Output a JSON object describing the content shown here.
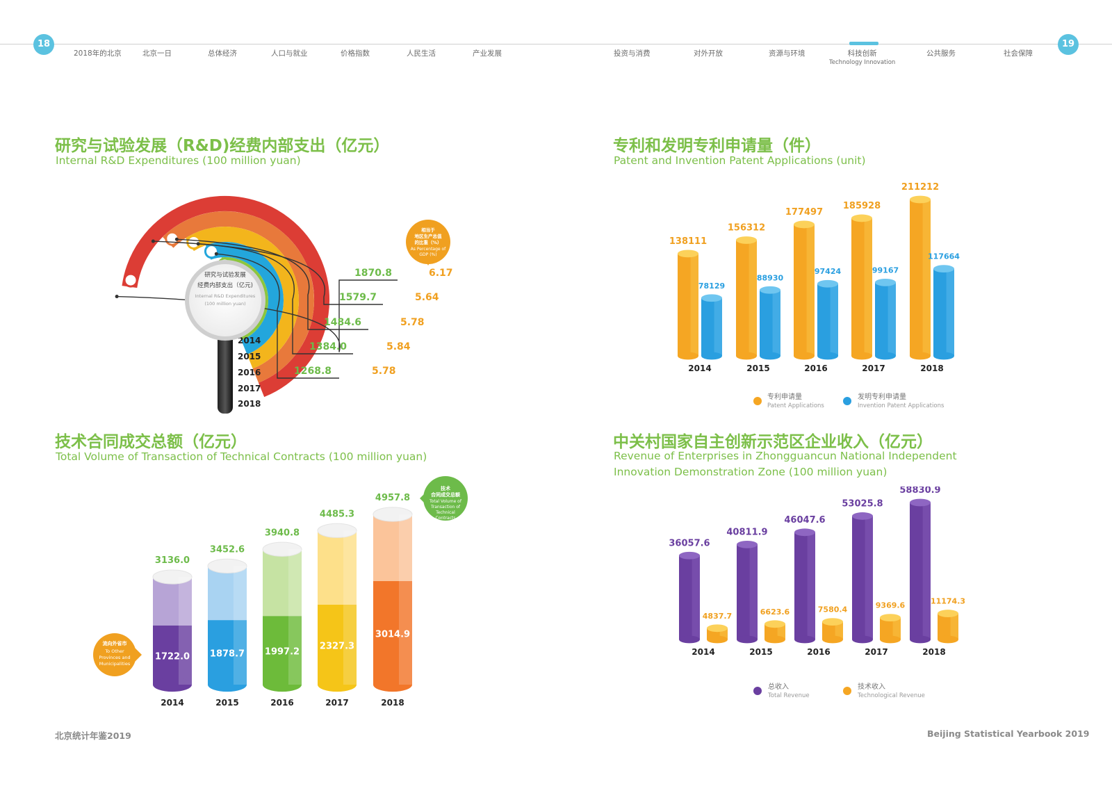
{
  "header": {
    "page_left": "18",
    "page_right": "19",
    "nav_left": [
      "2018年的北京",
      "北京一日",
      "总体经济",
      "人口与就业",
      "价格指数",
      "人民生活",
      "产业发展"
    ],
    "nav_right": [
      "投资与消费",
      "对外开放",
      "资源与环境",
      "科技创新",
      "公共服务",
      "社会保障"
    ],
    "nav_active_sub": "Technology Innovation"
  },
  "footer": {
    "left": "北京统计年鉴2019",
    "right": "Beijing Statistical Yearbook 2019"
  },
  "colors": {
    "title_green": "#7cbf49",
    "accent_blue": "#5bc2e0",
    "orange": "#f5a623",
    "blue": "#2a9fe0",
    "purple": "#6a3fa0",
    "label_green": "#6dbb4a",
    "label_orange": "#f0a020"
  },
  "rd": {
    "title_cn": "研究与试验发展（R&D)经费内部支出（亿元）",
    "title_en": "Internal R&D Expenditures (100 million yuan)",
    "magnifier_cn_1": "研究与试验发展",
    "magnifier_cn_2": "经费内部支出（亿元)",
    "magnifier_en_1": "Internal R&D Expenditures",
    "magnifier_en_2": "(100 million yuan)",
    "badge_lines": [
      "相当于",
      "地区生产总值",
      "的比重（%）",
      "As Percentage of",
      "GDP (%)"
    ]
  },
  "patent": {
    "title_cn": "专利和发明专利申请量（件）",
    "title_en": "Patent and Invention Patent Applications (unit)",
    "legend": [
      {
        "cn": "专利申请量",
        "en": "Patent Applications"
      },
      {
        "cn": "发明专利申请量",
        "en": "Invention Patent Applications"
      }
    ]
  },
  "contract": {
    "title_cn": "技术合同成交总额（亿元）",
    "title_en": "Total Volume of Transaction of Technical Contracts (100 million yuan)",
    "badge_total_lines": [
      "技术",
      "合同成交总额",
      "Total Volume of",
      "Transaction of",
      "Technical",
      "Contracts"
    ],
    "badge_other_lines": [
      "流向外省市",
      "To Other",
      "Provinces and",
      "Municipalities"
    ]
  },
  "zgc": {
    "title_cn": "中关村国家自主创新示范区企业收入（亿元）",
    "title_en_1": "Revenue of Enterprises in Zhongguancun National Independent",
    "title_en_2": "Innovation Demonstration Zone (100 million yuan)",
    "legend": [
      {
        "cn": "总收入",
        "en": "Total Revenue"
      },
      {
        "cn": "技术收入",
        "en": "Technological Revenue"
      }
    ]
  },
  "chart_data": [
    {
      "type": "bar",
      "id": "rd",
      "title": "研究与试验发展（R&D)经费内部支出（亿元）",
      "categories": [
        "2014",
        "2015",
        "2016",
        "2017",
        "2018"
      ],
      "series": [
        {
          "name": "",
          "values": [
            1268.8,
            1384.0,
            1484.6,
            1579.7,
            1870.8
          ],
          "labels": [
            "1268.8",
            "1384.0",
            "1484.6",
            "1579.7",
            "1870.8"
          ]
        },
        {
          "name": "As Percentage of GDP (%)",
          "values": [
            5.78,
            5.84,
            5.78,
            5.64,
            6.17
          ],
          "labels": [
            "5.78",
            "5.84",
            "5.78",
            "5.64",
            "6.17"
          ]
        }
      ]
    },
    {
      "type": "bar",
      "id": "patent",
      "title": "专利和发明专利申请量（件）",
      "categories": [
        "2014",
        "2015",
        "2016",
        "2017",
        "2018"
      ],
      "series": [
        {
          "name": "Patent Applications",
          "values": [
            138111,
            156312,
            177497,
            185928,
            211212
          ]
        },
        {
          "name": "Invention Patent Applications",
          "values": [
            78129,
            88930,
            97424,
            99167,
            117664
          ]
        }
      ]
    },
    {
      "type": "bar",
      "id": "contract",
      "title": "技术合同成交总额（亿元）",
      "categories": [
        "2014",
        "2015",
        "2016",
        "2017",
        "2018"
      ],
      "series": [
        {
          "name": "Total Volume of Transaction of Technical Contracts",
          "values": [
            3136.0,
            3452.6,
            3940.8,
            4485.3,
            4957.8
          ],
          "labels": [
            "3136.0",
            "3452.6",
            "3940.8",
            "4485.3",
            "4957.8"
          ]
        },
        {
          "name": "To Other Provinces and Municipalities",
          "values": [
            1722.0,
            1878.7,
            1997.2,
            2327.3,
            3014.9
          ],
          "labels": [
            "1722.0",
            "1878.7",
            "1997.2",
            "2327.3",
            "3014.9"
          ]
        }
      ]
    },
    {
      "type": "bar",
      "id": "zgc",
      "title": "中关村国家自主创新示范区企业收入（亿元）",
      "categories": [
        "2014",
        "2015",
        "2016",
        "2017",
        "2018"
      ],
      "series": [
        {
          "name": "Total Revenue",
          "values": [
            36057.6,
            40811.9,
            46047.6,
            53025.8,
            58830.9
          ],
          "labels": [
            "36057.6",
            "40811.9",
            "46047.6",
            "53025.8",
            "58830.9"
          ]
        },
        {
          "name": "Technological Revenue",
          "values": [
            4837.7,
            6623.6,
            7580.4,
            9369.6,
            11174.3
          ],
          "labels": [
            "4837.7",
            "6623.6",
            "7580.4",
            "9369.6",
            "11174.3"
          ]
        }
      ]
    }
  ]
}
